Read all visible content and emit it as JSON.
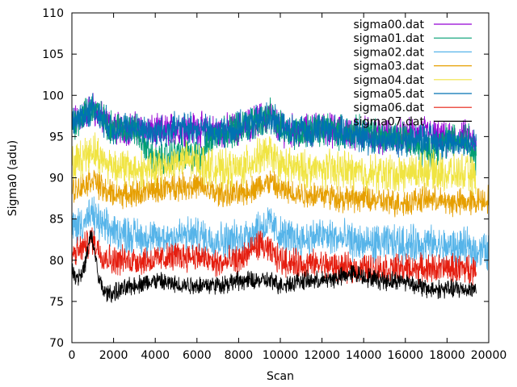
{
  "chart_data": {
    "type": "line",
    "title": "",
    "xlabel": "Scan",
    "ylabel": "Sigma0 (adu)",
    "xlim": [
      0,
      20000
    ],
    "ylim": [
      70,
      110
    ],
    "xticks": [
      0,
      2000,
      4000,
      6000,
      8000,
      10000,
      12000,
      14000,
      16000,
      18000,
      20000
    ],
    "yticks": [
      70,
      75,
      80,
      85,
      90,
      95,
      100,
      105,
      110
    ],
    "grid": false,
    "legend_position": "top-right",
    "series": [
      {
        "name": "sigma00.dat",
        "color": "#9400d3",
        "x_end": 19400,
        "noise": 1.6,
        "x": [
          0,
          500,
          1000,
          1500,
          2000,
          3000,
          4000,
          5000,
          6000,
          7000,
          8000,
          9000,
          9500,
          10000,
          11000,
          12000,
          13000,
          14000,
          15000,
          16000,
          17000,
          18000,
          19000,
          19400
        ],
        "y": [
          96.5,
          97.5,
          98.5,
          97.0,
          96.0,
          96.0,
          95.5,
          96.0,
          96.0,
          95.5,
          96.0,
          97.0,
          97.5,
          96.0,
          95.5,
          96.0,
          95.5,
          95.5,
          95.0,
          95.0,
          95.5,
          94.5,
          95.0,
          93.5
        ]
      },
      {
        "name": "sigma01.dat",
        "color": "#009e73",
        "x_end": 19400,
        "noise": 1.6,
        "x": [
          0,
          500,
          1000,
          1500,
          2000,
          3000,
          4000,
          5000,
          6000,
          7000,
          8000,
          9000,
          9500,
          10000,
          11000,
          12000,
          13000,
          14000,
          15000,
          16000,
          17000,
          18000,
          19000,
          19400
        ],
        "y": [
          96.5,
          97.5,
          98.5,
          97.0,
          96.0,
          96.0,
          92.0,
          93.0,
          92.5,
          95.5,
          96.0,
          97.0,
          97.5,
          96.0,
          95.5,
          96.0,
          95.5,
          95.5,
          95.0,
          95.0,
          93.0,
          94.5,
          95.0,
          92.0
        ]
      },
      {
        "name": "sigma02.dat",
        "color": "#56b4e9",
        "x_end": 20000,
        "noise": 1.8,
        "x": [
          0,
          500,
          1000,
          1500,
          2000,
          3000,
          4000,
          5000,
          6000,
          7000,
          8000,
          9000,
          9500,
          10000,
          11000,
          12000,
          13000,
          14000,
          15000,
          16000,
          17000,
          18000,
          19000,
          20000
        ],
        "y": [
          84.0,
          84.5,
          85.5,
          84.0,
          83.5,
          83.0,
          82.5,
          83.0,
          83.0,
          82.5,
          82.5,
          84.0,
          84.5,
          83.0,
          82.5,
          83.0,
          82.5,
          82.0,
          82.0,
          82.0,
          82.0,
          81.5,
          81.5,
          81.0
        ]
      },
      {
        "name": "sigma03.dat",
        "color": "#e69f00",
        "x_end": 20000,
        "noise": 1.3,
        "x": [
          0,
          500,
          1000,
          1500,
          2000,
          3000,
          4000,
          5000,
          6000,
          7000,
          8000,
          9000,
          9500,
          10000,
          11000,
          12000,
          13000,
          14000,
          15000,
          16000,
          17000,
          18000,
          19000,
          20000
        ],
        "y": [
          88.5,
          89.0,
          90.0,
          88.5,
          88.0,
          88.0,
          88.5,
          89.0,
          89.0,
          88.0,
          88.0,
          89.0,
          89.5,
          88.5,
          88.0,
          88.0,
          87.5,
          87.5,
          87.0,
          87.0,
          87.5,
          87.0,
          87.0,
          87.5
        ]
      },
      {
        "name": "sigma04.dat",
        "color": "#f0e442",
        "x_end": 19400,
        "noise": 1.8,
        "x": [
          0,
          500,
          1000,
          1500,
          2000,
          3000,
          4000,
          5000,
          6000,
          7000,
          8000,
          9000,
          9500,
          10000,
          11000,
          12000,
          13000,
          14000,
          15000,
          16000,
          17000,
          18000,
          19000,
          19400
        ],
        "y": [
          91.5,
          92.5,
          93.5,
          92.0,
          91.5,
          91.0,
          91.0,
          92.0,
          92.0,
          91.0,
          91.0,
          92.5,
          93.0,
          91.5,
          91.0,
          91.0,
          91.0,
          90.5,
          90.5,
          90.5,
          91.0,
          90.5,
          90.5,
          90.0
        ]
      },
      {
        "name": "sigma05.dat",
        "color": "#0072b2",
        "x_end": 19400,
        "noise": 1.5,
        "x": [
          0,
          500,
          1000,
          1500,
          2000,
          3000,
          4000,
          5000,
          6000,
          7000,
          8000,
          9000,
          9500,
          10000,
          11000,
          12000,
          13000,
          14000,
          15000,
          16000,
          17000,
          18000,
          19000,
          19400
        ],
        "y": [
          96.5,
          97.5,
          98.5,
          97.0,
          96.0,
          96.0,
          95.5,
          96.0,
          96.0,
          95.5,
          96.0,
          97.0,
          97.5,
          96.0,
          95.5,
          96.0,
          95.5,
          95.0,
          94.5,
          94.5,
          95.0,
          94.0,
          94.5,
          94.0
        ]
      },
      {
        "name": "sigma06.dat",
        "color": "#e51e10",
        "x_end": 19400,
        "noise": 1.4,
        "x": [
          0,
          500,
          1000,
          1500,
          2000,
          3000,
          4000,
          5000,
          6000,
          7000,
          8000,
          9000,
          9500,
          10000,
          11000,
          12000,
          13000,
          14000,
          15000,
          16000,
          17000,
          18000,
          19000,
          19400
        ],
        "y": [
          80.5,
          81.5,
          82.5,
          80.5,
          80.0,
          80.0,
          80.0,
          80.5,
          80.5,
          79.5,
          80.0,
          82.0,
          81.0,
          80.0,
          79.5,
          79.5,
          79.0,
          79.0,
          79.0,
          79.0,
          79.0,
          79.0,
          79.0,
          79.0
        ]
      },
      {
        "name": "sigma07.dat",
        "color": "#000000",
        "x_end": 19400,
        "noise": 0.9,
        "x": [
          0,
          300,
          600,
          900,
          1100,
          1300,
          1600,
          2000,
          3000,
          4000,
          5000,
          6000,
          7000,
          8000,
          9000,
          9500,
          10000,
          11000,
          12000,
          13000,
          13500,
          14000,
          15000,
          16000,
          17000,
          18000,
          19000,
          19400
        ],
        "y": [
          78.5,
          78.0,
          79.0,
          83.0,
          81.0,
          77.5,
          76.0,
          76.0,
          77.0,
          77.5,
          77.0,
          77.0,
          77.0,
          77.5,
          77.5,
          77.5,
          77.0,
          77.5,
          77.5,
          78.0,
          78.5,
          78.0,
          77.5,
          77.5,
          76.5,
          76.5,
          76.5,
          76.5
        ]
      }
    ]
  }
}
